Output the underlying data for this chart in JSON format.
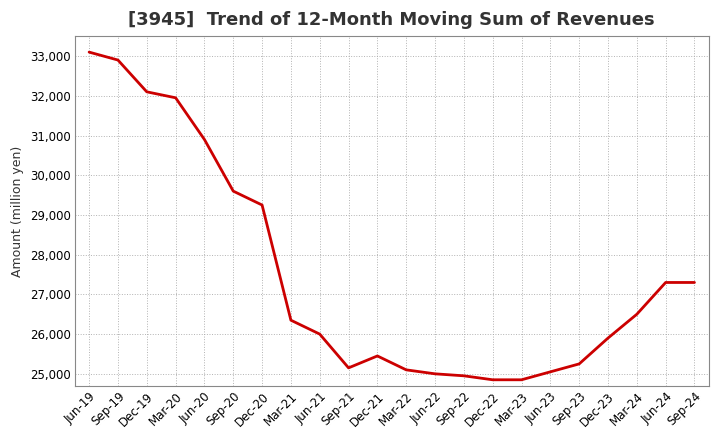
{
  "title": "[3945]  Trend of 12-Month Moving Sum of Revenues",
  "ylabel": "Amount (million yen)",
  "line_color": "#cc0000",
  "background_color": "#ffffff",
  "plot_bg_color": "#ffffff",
  "grid_color": "#aaaaaa",
  "title_color": "#333333",
  "ylim": [
    24700,
    33500
  ],
  "yticks": [
    25000,
    26000,
    27000,
    28000,
    29000,
    30000,
    31000,
    32000,
    33000
  ],
  "x_labels": [
    "Jun-19",
    "Sep-19",
    "Dec-19",
    "Mar-20",
    "Jun-20",
    "Sep-20",
    "Dec-20",
    "Mar-21",
    "Jun-21",
    "Sep-21",
    "Dec-21",
    "Mar-22",
    "Jun-22",
    "Sep-22",
    "Dec-22",
    "Mar-23",
    "Jun-23",
    "Sep-23",
    "Dec-23",
    "Mar-24",
    "Jun-24",
    "Sep-24"
  ],
  "values": [
    33100,
    32900,
    32100,
    31950,
    30900,
    29600,
    29250,
    26350,
    26000,
    25150,
    25450,
    25100,
    25000,
    24950,
    24850,
    24850,
    25050,
    25250,
    25900,
    26500,
    27300,
    27300
  ],
  "title_fontsize": 13,
  "tick_fontsize": 8.5,
  "ylabel_fontsize": 9,
  "linewidth": 2.0
}
